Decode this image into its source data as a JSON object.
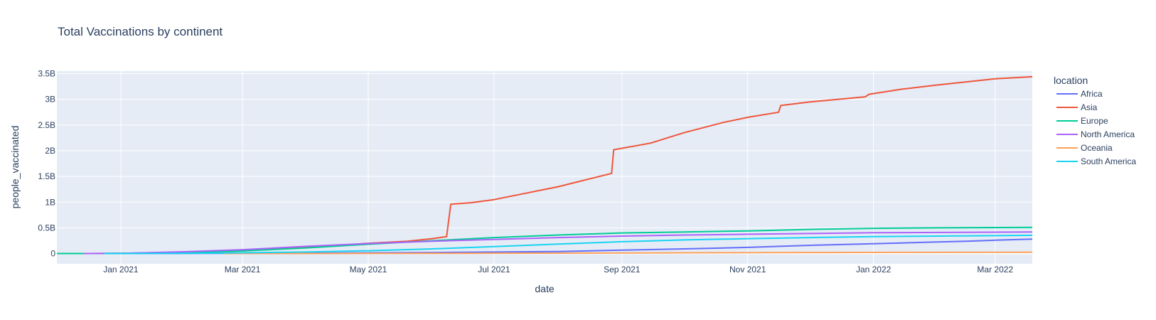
{
  "chart_data": {
    "type": "line",
    "title": "Total Vaccinations by continent",
    "xlabel": "date",
    "ylabel": "people_vaccinated",
    "legend_title": "location",
    "legend_position": "right",
    "grid": true,
    "plot_background": "#e5ecf6",
    "xlim": [
      "2020-12-01",
      "2022-03-19"
    ],
    "ylim": [
      -0.2,
      3.55
    ],
    "y_unit": "billions",
    "x_ticks": [
      {
        "date": "2021-01-01",
        "label": "Jan 2021"
      },
      {
        "date": "2021-03-01",
        "label": "Mar 2021"
      },
      {
        "date": "2021-05-01",
        "label": "May 2021"
      },
      {
        "date": "2021-07-01",
        "label": "Jul 2021"
      },
      {
        "date": "2021-09-01",
        "label": "Sep 2021"
      },
      {
        "date": "2021-11-01",
        "label": "Nov 2021"
      },
      {
        "date": "2022-01-01",
        "label": "Jan 2022"
      },
      {
        "date": "2022-03-01",
        "label": "Mar 2022"
      }
    ],
    "y_ticks": [
      {
        "value": 0,
        "label": "0"
      },
      {
        "value": 0.5,
        "label": "0.5B"
      },
      {
        "value": 1,
        "label": "1B"
      },
      {
        "value": 1.5,
        "label": "1.5B"
      },
      {
        "value": 2,
        "label": "2B"
      },
      {
        "value": 2.5,
        "label": "2.5B"
      },
      {
        "value": 3,
        "label": "3B"
      },
      {
        "value": 3.5,
        "label": "3.5B"
      }
    ],
    "series": [
      {
        "name": "Africa",
        "color": "#636efa",
        "points": [
          [
            "2020-12-10",
            0
          ],
          [
            "2021-02-01",
            0.002
          ],
          [
            "2021-04-01",
            0.008
          ],
          [
            "2021-06-01",
            0.02
          ],
          [
            "2021-08-01",
            0.04
          ],
          [
            "2021-09-01",
            0.065
          ],
          [
            "2021-10-01",
            0.09
          ],
          [
            "2021-11-01",
            0.12
          ],
          [
            "2021-12-01",
            0.16
          ],
          [
            "2022-01-01",
            0.19
          ],
          [
            "2022-02-01",
            0.225
          ],
          [
            "2022-02-15",
            0.24
          ],
          [
            "2022-03-01",
            0.26
          ],
          [
            "2022-03-19",
            0.28
          ]
        ]
      },
      {
        "name": "Asia",
        "color": "#ef553b",
        "points": [
          [
            "2020-12-15",
            0
          ],
          [
            "2021-01-01",
            0.005
          ],
          [
            "2021-02-01",
            0.02
          ],
          [
            "2021-03-01",
            0.05
          ],
          [
            "2021-04-01",
            0.12
          ],
          [
            "2021-05-01",
            0.2
          ],
          [
            "2021-05-20",
            0.24
          ],
          [
            "2021-06-01",
            0.29
          ],
          [
            "2021-06-08",
            0.33
          ],
          [
            "2021-06-10",
            0.96
          ],
          [
            "2021-06-20",
            0.99
          ],
          [
            "2021-07-01",
            1.05
          ],
          [
            "2021-08-01",
            1.3
          ],
          [
            "2021-08-27",
            1.56
          ],
          [
            "2021-08-28",
            2.02
          ],
          [
            "2021-09-15",
            2.15
          ],
          [
            "2021-10-01",
            2.35
          ],
          [
            "2021-10-20",
            2.55
          ],
          [
            "2021-11-01",
            2.65
          ],
          [
            "2021-11-16",
            2.75
          ],
          [
            "2021-11-17",
            2.88
          ],
          [
            "2021-12-01",
            2.95
          ],
          [
            "2021-12-28",
            3.05
          ],
          [
            "2021-12-30",
            3.1
          ],
          [
            "2022-01-15",
            3.2
          ],
          [
            "2022-02-01",
            3.28
          ],
          [
            "2022-03-01",
            3.4
          ],
          [
            "2022-03-19",
            3.44
          ]
        ]
      },
      {
        "name": "Europe",
        "color": "#00cc96",
        "points": [
          [
            "2020-12-01",
            0
          ],
          [
            "2020-12-20",
            0
          ],
          [
            "2021-01-01",
            0.003
          ],
          [
            "2021-02-01",
            0.02
          ],
          [
            "2021-03-01",
            0.05
          ],
          [
            "2021-04-01",
            0.11
          ],
          [
            "2021-05-01",
            0.18
          ],
          [
            "2021-06-01",
            0.25
          ],
          [
            "2021-07-01",
            0.31
          ],
          [
            "2021-08-01",
            0.36
          ],
          [
            "2021-09-01",
            0.4
          ],
          [
            "2021-10-01",
            0.42
          ],
          [
            "2021-11-01",
            0.44
          ],
          [
            "2021-12-01",
            0.47
          ],
          [
            "2022-01-01",
            0.49
          ],
          [
            "2022-02-01",
            0.5
          ],
          [
            "2022-03-19",
            0.51
          ]
        ]
      },
      {
        "name": "North America",
        "color": "#ab63fa",
        "points": [
          [
            "2020-12-14",
            0
          ],
          [
            "2021-01-01",
            0.005
          ],
          [
            "2021-02-01",
            0.035
          ],
          [
            "2021-03-01",
            0.075
          ],
          [
            "2021-04-01",
            0.14
          ],
          [
            "2021-05-01",
            0.195
          ],
          [
            "2021-06-01",
            0.24
          ],
          [
            "2021-07-01",
            0.275
          ],
          [
            "2021-08-01",
            0.31
          ],
          [
            "2021-09-01",
            0.34
          ],
          [
            "2021-10-01",
            0.36
          ],
          [
            "2021-11-01",
            0.375
          ],
          [
            "2021-12-01",
            0.39
          ],
          [
            "2022-01-01",
            0.405
          ],
          [
            "2022-03-19",
            0.42
          ]
        ]
      },
      {
        "name": "Oceania",
        "color": "#ffa15a",
        "points": [
          [
            "2021-02-20",
            0
          ],
          [
            "2021-04-01",
            0.001
          ],
          [
            "2021-06-01",
            0.004
          ],
          [
            "2021-08-01",
            0.008
          ],
          [
            "2021-10-01",
            0.015
          ],
          [
            "2021-12-01",
            0.02
          ],
          [
            "2022-03-19",
            0.025
          ]
        ]
      },
      {
        "name": "South America",
        "color": "#19d3f3",
        "points": [
          [
            "2020-12-24",
            0
          ],
          [
            "2021-02-01",
            0.005
          ],
          [
            "2021-03-01",
            0.015
          ],
          [
            "2021-04-01",
            0.03
          ],
          [
            "2021-05-01",
            0.055
          ],
          [
            "2021-06-01",
            0.09
          ],
          [
            "2021-07-01",
            0.135
          ],
          [
            "2021-08-01",
            0.185
          ],
          [
            "2021-09-01",
            0.23
          ],
          [
            "2021-10-01",
            0.265
          ],
          [
            "2021-11-01",
            0.29
          ],
          [
            "2021-12-01",
            0.31
          ],
          [
            "2022-01-01",
            0.33
          ],
          [
            "2022-02-01",
            0.34
          ],
          [
            "2022-03-19",
            0.355
          ]
        ]
      }
    ]
  }
}
